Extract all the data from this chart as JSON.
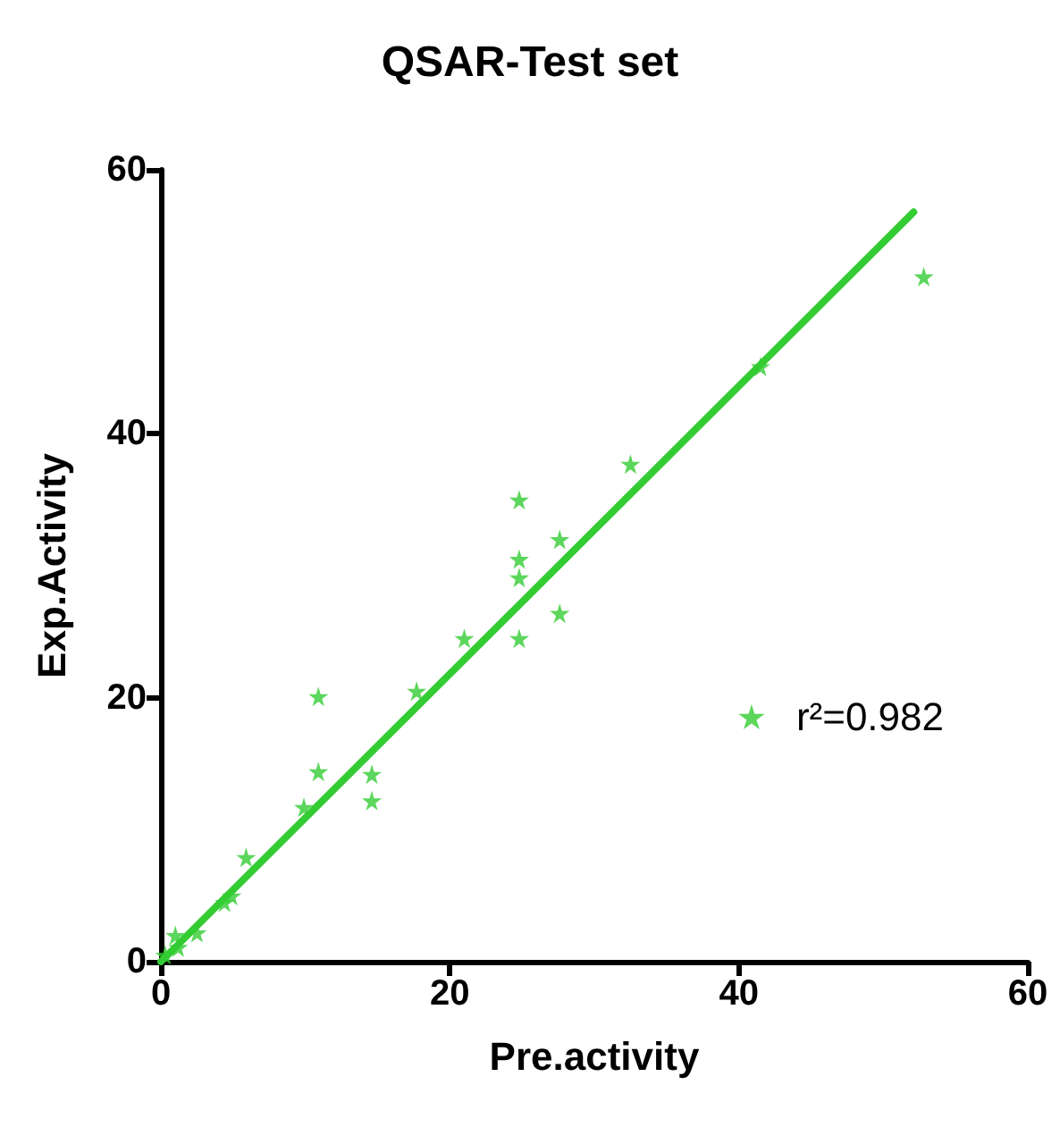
{
  "chart_data": {
    "type": "scatter",
    "title": "QSAR-Test set",
    "xlabel": "Pre.activity",
    "ylabel": "Exp.Activity",
    "xlim": [
      0,
      60
    ],
    "ylim": [
      0,
      60
    ],
    "xticks": [
      0,
      20,
      40,
      60
    ],
    "yticks": [
      0,
      20,
      40,
      60
    ],
    "grid": false,
    "legend": "right",
    "marker": "star",
    "series": [
      {
        "name": "r²=0.982",
        "color": "#33cc33",
        "x": [
          0.3,
          1.0,
          1.2,
          2.5,
          4.4,
          4.9,
          5.9,
          9.9,
          10.9,
          10.9,
          14.6,
          14.6,
          17.7,
          21.0,
          24.8,
          24.8,
          24.8,
          24.8,
          27.6,
          27.6,
          32.5,
          41.5,
          52.8
        ],
        "values": [
          0.5,
          2.0,
          1.1,
          2.2,
          4.5,
          5.0,
          7.9,
          11.7,
          20.1,
          14.4,
          14.2,
          12.2,
          20.5,
          24.5,
          24.5,
          29.1,
          30.5,
          35.0,
          32.0,
          26.4,
          37.7,
          45.1,
          51.9
        ]
      },
      {
        "type": "line",
        "color": "#33cc33",
        "marker": "none",
        "x": [
          0,
          52.1
        ],
        "values": [
          0,
          56.8
        ]
      }
    ]
  }
}
